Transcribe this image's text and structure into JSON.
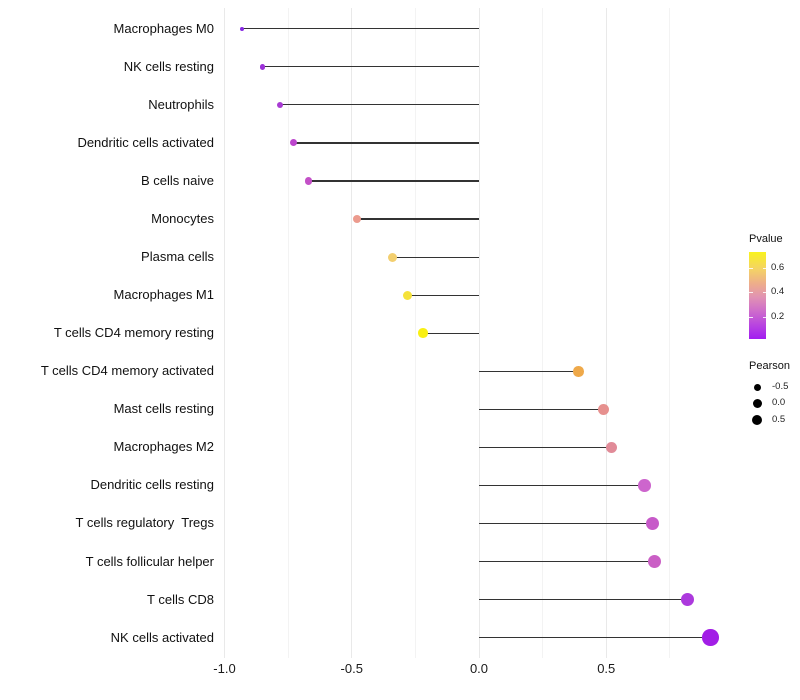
{
  "chart_data": {
    "type": "lollipop",
    "orientation": "horizontal",
    "title": "",
    "xlabel": "",
    "ylabel": "",
    "grid": "vertical-only",
    "legend_position": "right",
    "baseline": 0,
    "x_axis": {
      "ticks": [
        "-1.0",
        "-0.5",
        "0.0",
        "0.5"
      ],
      "tick_values": [
        -1.0,
        -0.5,
        0.0,
        0.5
      ],
      "minor_values": [
        -0.75,
        -0.25,
        0.25,
        0.75
      ],
      "range": [
        -1.16,
        0.96
      ]
    },
    "categories": [
      "Macrophages M0",
      "NK cells resting",
      "Neutrophils",
      "Dendritic cells activated",
      "B cells naive",
      "Monocytes",
      "Plasma cells",
      "Macrophages M1",
      "T cells CD4 memory resting",
      "T cells CD4 memory activated",
      "Mast cells resting",
      "Macrophages M2",
      "Dendritic cells resting",
      "T cells regulatory  Tregs",
      "T cells follicular helper",
      "T cells CD8",
      "NK cells activated"
    ],
    "series": [
      {
        "name": "Pearson",
        "values": [
          -0.93,
          -0.85,
          -0.78,
          -0.73,
          -0.67,
          -0.48,
          -0.34,
          -0.28,
          -0.22,
          0.39,
          0.49,
          0.52,
          0.65,
          0.68,
          0.69,
          0.82,
          0.91
        ]
      }
    ],
    "pvalues_estimated_from_color": [
      0.02,
      0.06,
      0.09,
      0.14,
      0.19,
      0.44,
      0.55,
      0.63,
      0.72,
      0.5,
      0.42,
      0.4,
      0.24,
      0.21,
      0.22,
      0.11,
      0.03
    ],
    "point_colors": [
      "#8629E2",
      "#9C32D8",
      "#A83BD3",
      "#BC45CD",
      "#C350C7",
      "#EC9B8E",
      "#F3CF6F",
      "#F5E23A",
      "#F9F013",
      "#EFA94A",
      "#E6908E",
      "#E18B98",
      "#CD65CD",
      "#C75AC9",
      "#CA5FC5",
      "#AC39DD",
      "#A21EE6"
    ],
    "point_diameters": [
      4,
      5.5,
      6,
      7,
      7.5,
      8.5,
      9,
      9,
      9.5,
      10.5,
      11.5,
      11.5,
      12.5,
      13,
      13,
      13.5,
      16.5
    ],
    "stem_color": "#333333"
  },
  "legend": {
    "pvalue": {
      "title": "Pvalue",
      "ticks": [
        {
          "label": "0.6",
          "pos": 0.184
        },
        {
          "label": "0.4",
          "pos": 0.46
        },
        {
          "label": "0.2",
          "pos": 0.744
        }
      ],
      "gradient_stops": [
        {
          "color": "#A21CF0",
          "pct": 0
        },
        {
          "color": "#B742E1",
          "pct": 15
        },
        {
          "color": "#CE6CCB",
          "pct": 32
        },
        {
          "color": "#E192B3",
          "pct": 48
        },
        {
          "color": "#EDAC8C",
          "pct": 63
        },
        {
          "color": "#F4D266",
          "pct": 80
        },
        {
          "color": "#F9F31E",
          "pct": 100
        }
      ]
    },
    "pearson": {
      "title": "Pearson",
      "items": [
        {
          "label": "-0.5",
          "diameter": 7
        },
        {
          "label": "0.0",
          "diameter": 9
        },
        {
          "label": "0.5",
          "diameter": 10
        }
      ]
    }
  }
}
